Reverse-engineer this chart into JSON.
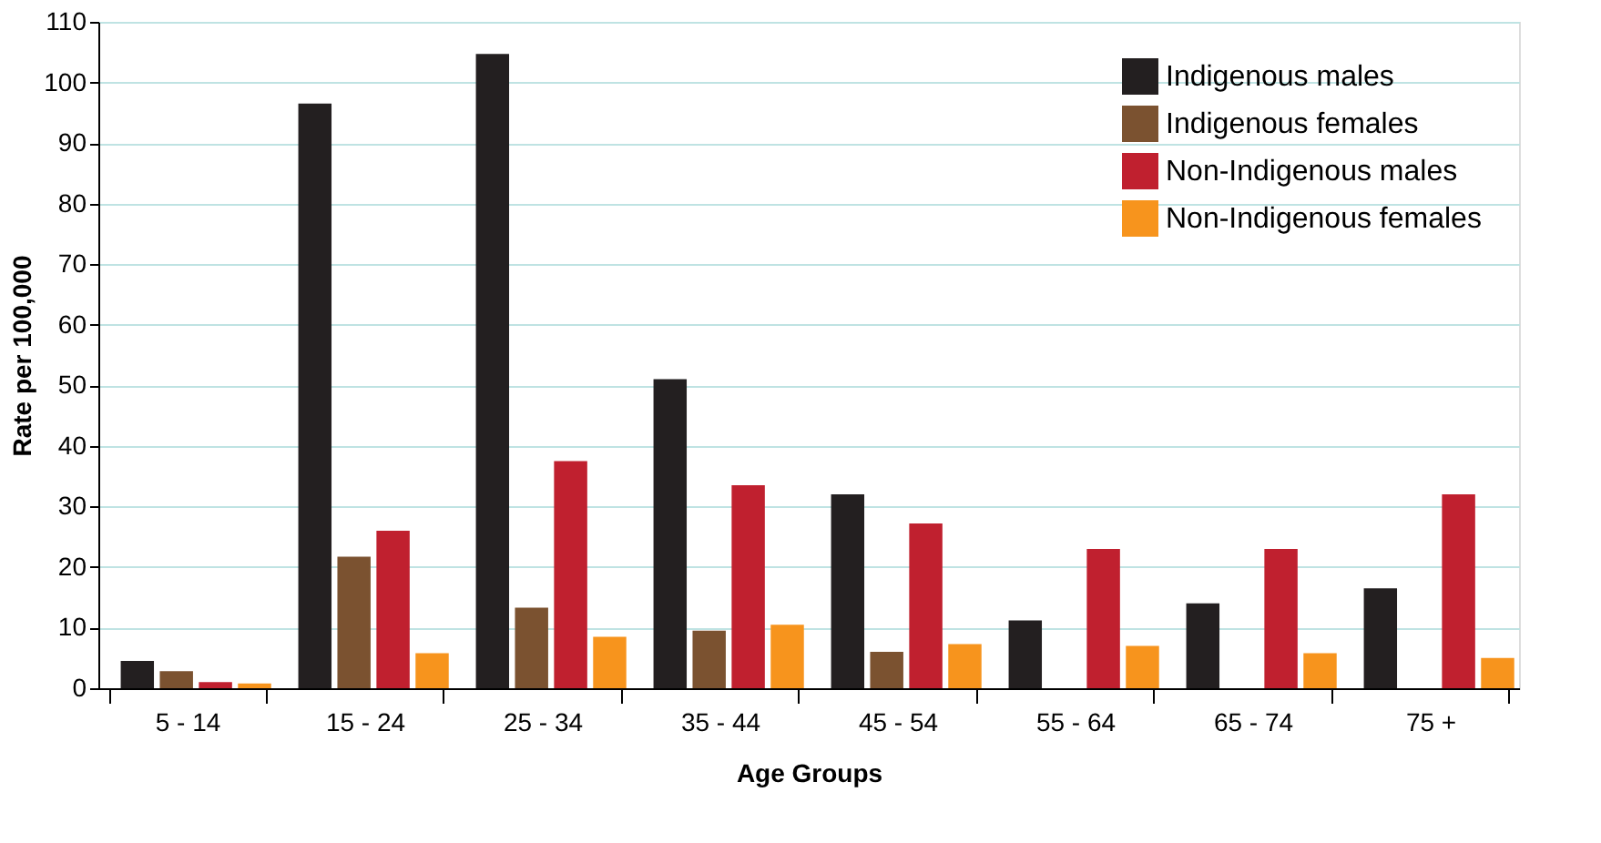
{
  "chart_data": {
    "type": "bar",
    "xlabel": "Age Groups",
    "ylabel": "Rate per 100,000",
    "categories": [
      "5 - 14",
      "15 - 24",
      "25 - 34",
      "35 - 44",
      "45 - 54",
      "55 - 64",
      "65 - 74",
      "75 +"
    ],
    "series": [
      {
        "name": "Indigenous males",
        "color": "#231f20",
        "values": [
          4.5,
          96.5,
          104.7,
          51,
          32,
          11.2,
          14,
          16.5
        ]
      },
      {
        "name": "Indigenous females",
        "color": "#7b5230",
        "values": [
          2.8,
          21.7,
          13.3,
          9.5,
          6,
          null,
          null,
          null
        ]
      },
      {
        "name": "Non-Indigenous males",
        "color": "#c0202f",
        "values": [
          1,
          26,
          37.5,
          33.5,
          27.2,
          23,
          23,
          32
        ]
      },
      {
        "name": "Non-Indigenous females",
        "color": "#f7941d",
        "values": [
          0.8,
          5.8,
          8.5,
          10.5,
          7.3,
          7,
          5.8,
          5
        ]
      }
    ],
    "ylim": [
      0,
      110
    ],
    "yticks": [
      0,
      10,
      20,
      30,
      40,
      50,
      60,
      70,
      80,
      90,
      100,
      110
    ],
    "grid": "y",
    "legend": "top right"
  }
}
